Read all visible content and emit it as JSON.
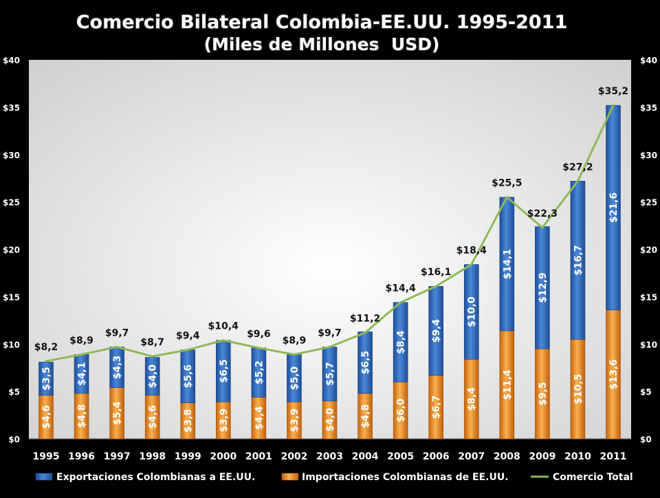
{
  "chart_data": {
    "type": "bar",
    "title": "Comercio Bilateral Colombia-EE.UU. 1995-2011",
    "subtitle": "(Miles de Millones  USD)",
    "categories": [
      "1995",
      "1996",
      "1997",
      "1998",
      "1999",
      "2000",
      "2001",
      "2002",
      "2003",
      "2004",
      "2005",
      "2006",
      "2007",
      "2008",
      "2009",
      "2010",
      "2011"
    ],
    "stacked": true,
    "series": [
      {
        "name": "Exportaciones Colombianas a EE.UU.",
        "kind": "bar",
        "color": "#3e78c9",
        "values": [
          3.5,
          4.1,
          4.3,
          4.0,
          5.6,
          6.5,
          5.2,
          5.0,
          5.7,
          6.5,
          8.4,
          9.4,
          10.0,
          14.1,
          12.9,
          16.7,
          21.6
        ],
        "labels": [
          "$3,5",
          "$4,1",
          "$4,3",
          "$4,0",
          "$5,6",
          "$6,5",
          "$5,2",
          "$5,0",
          "$5,7",
          "$6,5",
          "$8,4",
          "$9,4",
          "$10,0",
          "$14,1",
          "$12,9",
          "$16,7",
          "$21,6"
        ]
      },
      {
        "name": "Importaciones Colombianas de EE.UU.",
        "kind": "bar",
        "color": "#f39a2e",
        "values": [
          4.6,
          4.8,
          5.4,
          4.6,
          3.8,
          3.9,
          4.4,
          3.9,
          4.0,
          4.8,
          6.0,
          6.7,
          8.4,
          11.4,
          9.5,
          10.5,
          13.6
        ],
        "labels": [
          "$4,6",
          "$4,8",
          "$5,4",
          "$4,6",
          "$3,8",
          "$3,9",
          "$4,4",
          "$3,9",
          "$4,0",
          "$4,8",
          "$6,0",
          "$6,7",
          "$8,4",
          "$11,4",
          "$9,5",
          "$10,5",
          "$13,6"
        ]
      },
      {
        "name": "Comercio Total",
        "kind": "line",
        "color": "#8fb957",
        "values": [
          8.2,
          8.9,
          9.7,
          8.7,
          9.4,
          10.4,
          9.6,
          8.9,
          9.7,
          11.2,
          14.4,
          16.1,
          18.4,
          25.5,
          22.3,
          27.2,
          35.2
        ],
        "labels": [
          "$8,2",
          "$8,9",
          "$9,7",
          "$8,7",
          "$9,4",
          "$10,4",
          "$9,6",
          "$8,9",
          "$9,7",
          "$11,2",
          "$14,4",
          "$16,1",
          "$18,4",
          "$25,5",
          "$22,3",
          "$27,2",
          "$35,2"
        ]
      }
    ],
    "ylim": [
      0,
      40
    ],
    "y_ticks": [
      "$0",
      "$5",
      "$10",
      "$15",
      "$20",
      "$25",
      "$30",
      "$35",
      "$40"
    ],
    "y_tick_values": [
      0,
      5,
      10,
      15,
      20,
      25,
      30,
      35,
      40
    ],
    "secondary_y_axis": true,
    "grid": false,
    "legend_position": "bottom",
    "colors": {
      "background": "#000000",
      "plot_background_light": "#ffffff",
      "plot_background_dark": "#cfcfcf",
      "title_fill": "#ffffff",
      "title_stroke": "#1a1a1a",
      "axis_text": "#ffffff",
      "data_label_dark": "#111111",
      "data_label_light": "#ffffff"
    }
  }
}
